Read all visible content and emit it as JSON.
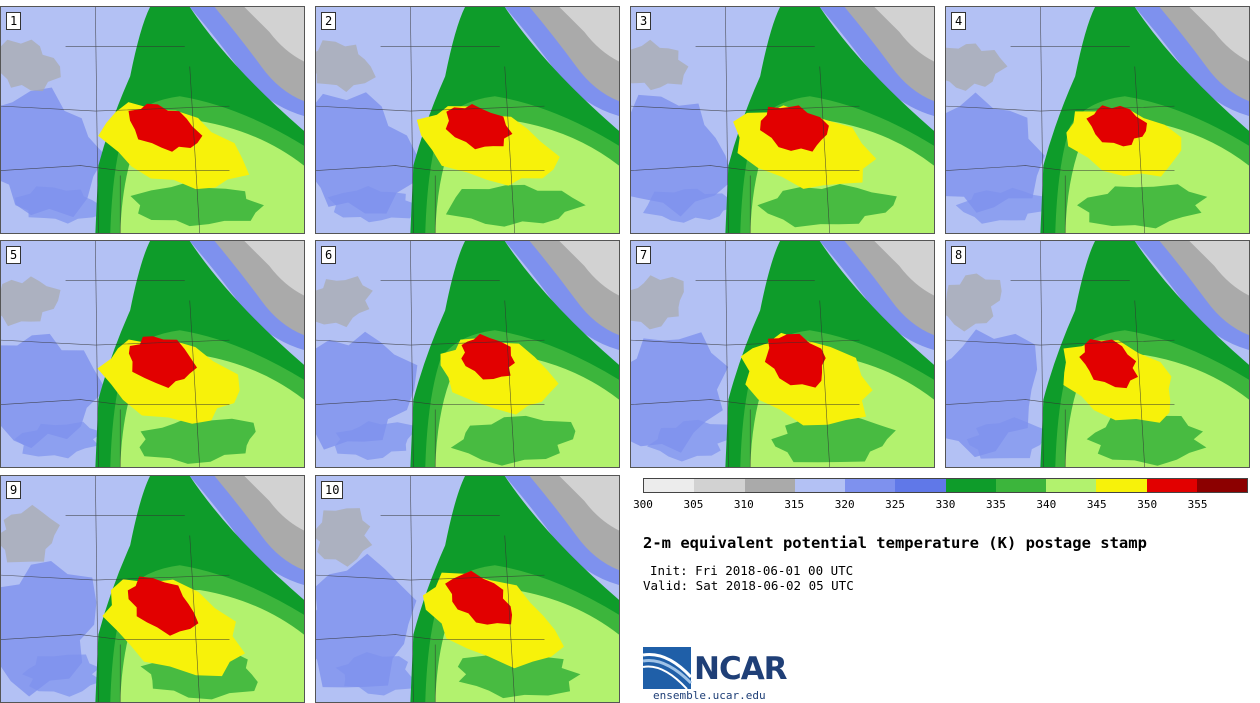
{
  "panels": [
    {
      "label": "1",
      "core": [
        145,
        108
      ],
      "scale": 1.0
    },
    {
      "label": "2",
      "core": [
        460,
        108
      ],
      "scale": 0.95
    },
    {
      "label": "3",
      "core": [
        775,
        108
      ],
      "scale": 1.0
    },
    {
      "label": "4",
      "core": [
        1100,
        108
      ],
      "scale": 0.85
    },
    {
      "label": "5",
      "core": [
        140,
        340
      ],
      "scale": 1.0
    },
    {
      "label": "6",
      "core": [
        470,
        340
      ],
      "scale": 0.85
    },
    {
      "label": "7",
      "core": [
        775,
        340
      ],
      "scale": 1.0
    },
    {
      "label": "8",
      "core": [
        1090,
        345
      ],
      "scale": 0.9
    },
    {
      "label": "9",
      "core": [
        140,
        585
      ],
      "scale": 1.05
    },
    {
      "label": "10",
      "core": [
        460,
        580
      ],
      "scale": 1.0
    }
  ],
  "colorbar": {
    "ticks": [
      "300",
      "305",
      "310",
      "315",
      "320",
      "325",
      "330",
      "335",
      "340",
      "345",
      "350",
      "355"
    ],
    "colors": [
      "#ececec",
      "#d2d2d2",
      "#aaaaaa",
      "#b3c1f4",
      "#7e91ee",
      "#6078e8",
      "#0e9c2a",
      "#3cb53c",
      "#b2f26e",
      "#f7f20a",
      "#e20000",
      "#8c0000"
    ]
  },
  "title": "2-m equivalent potential temperature (K) postage stamp",
  "init": "Init: Fri 2018-06-01 00 UTC",
  "valid": "Valid: Sat 2018-06-02 05 UTC",
  "logo": {
    "name": "NCAR",
    "site": "ensemble.ucar.edu"
  }
}
